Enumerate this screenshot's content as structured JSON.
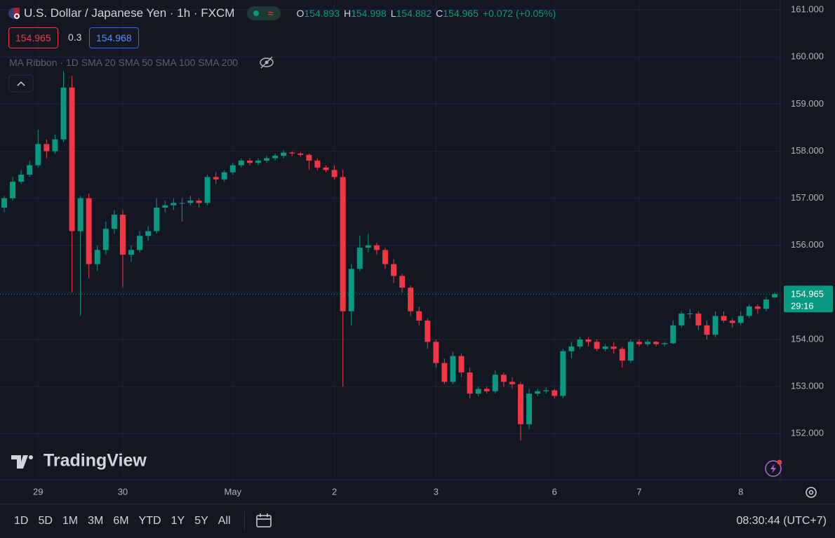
{
  "header": {
    "symbol": "U.S. Dollar / Japanese Yen · 1h · FXCM",
    "ohlc": [
      {
        "key": "O",
        "value": "154.893"
      },
      {
        "key": "H",
        "value": "154.998"
      },
      {
        "key": "L",
        "value": "154.882"
      },
      {
        "key": "C",
        "value": "154.965"
      }
    ],
    "change": "+0.072 (+0.05%)",
    "sell": "154.965",
    "spread": "0.3",
    "buy": "154.968",
    "indicator": "MA Ribbon · 1D SMA 20 SMA 50 SMA 100 SMA 200"
  },
  "chart_data": {
    "type": "candlestick",
    "categories": [
      null,
      null,
      null,
      null,
      "29",
      null,
      null,
      null,
      null,
      null,
      null,
      null,
      null,
      null,
      "30",
      null,
      null,
      null,
      null,
      null,
      null,
      null,
      null,
      null,
      null,
      null,
      null,
      "May",
      null,
      null,
      null,
      null,
      null,
      null,
      null,
      null,
      null,
      null,
      null,
      "2",
      null,
      null,
      null,
      null,
      null,
      null,
      null,
      null,
      null,
      null,
      null,
      "3",
      null,
      null,
      null,
      null,
      null,
      null,
      null,
      null,
      null,
      null,
      null,
      null,
      null,
      "6",
      null,
      null,
      null,
      null,
      null,
      null,
      null,
      null,
      null,
      "7",
      null,
      null,
      null,
      null,
      null,
      null,
      null,
      null,
      null,
      null,
      null,
      "8",
      null,
      null,
      null,
      null
    ],
    "ohlc": [
      [
        156.8,
        157.05,
        156.7,
        157.0
      ],
      [
        157.0,
        157.45,
        156.95,
        157.35
      ],
      [
        157.35,
        157.6,
        157.3,
        157.5
      ],
      [
        157.5,
        157.8,
        157.45,
        157.7
      ],
      [
        157.7,
        158.45,
        157.65,
        158.15
      ],
      [
        158.15,
        158.25,
        157.85,
        158.0
      ],
      [
        158.0,
        158.35,
        157.95,
        158.25
      ],
      [
        158.25,
        159.7,
        158.2,
        159.35
      ],
      [
        159.35,
        159.6,
        155.0,
        156.3
      ],
      [
        156.3,
        157.05,
        154.5,
        157.0
      ],
      [
        157.0,
        157.1,
        155.3,
        155.6
      ],
      [
        155.6,
        156.0,
        155.45,
        155.9
      ],
      [
        155.9,
        156.5,
        155.8,
        156.35
      ],
      [
        156.35,
        156.75,
        156.25,
        156.65
      ],
      [
        156.65,
        156.75,
        155.1,
        155.8
      ],
      [
        155.8,
        156.0,
        155.65,
        155.9
      ],
      [
        155.9,
        156.3,
        155.85,
        156.2
      ],
      [
        156.2,
        156.4,
        156.1,
        156.3
      ],
      [
        156.3,
        157.0,
        156.25,
        156.8
      ],
      [
        156.8,
        156.95,
        156.7,
        156.85
      ],
      [
        156.85,
        157.0,
        156.75,
        156.9
      ],
      [
        156.9,
        157.0,
        156.5,
        156.9
      ],
      [
        156.9,
        157.05,
        156.85,
        156.95
      ],
      [
        156.95,
        157.0,
        156.8,
        156.9
      ],
      [
        156.9,
        157.5,
        156.85,
        157.45
      ],
      [
        157.45,
        157.55,
        157.3,
        157.4
      ],
      [
        157.4,
        157.6,
        157.35,
        157.55
      ],
      [
        157.55,
        157.75,
        157.5,
        157.7
      ],
      [
        157.7,
        157.85,
        157.65,
        157.8
      ],
      [
        157.8,
        157.85,
        157.7,
        157.75
      ],
      [
        157.75,
        157.85,
        157.7,
        157.8
      ],
      [
        157.8,
        157.9,
        157.75,
        157.85
      ],
      [
        157.85,
        157.95,
        157.8,
        157.9
      ],
      [
        157.9,
        158.02,
        157.85,
        157.97
      ],
      [
        157.97,
        158.0,
        157.9,
        157.95
      ],
      [
        157.95,
        157.98,
        157.88,
        157.92
      ],
      [
        157.92,
        157.95,
        157.6,
        157.8
      ],
      [
        157.8,
        157.85,
        157.6,
        157.65
      ],
      [
        157.65,
        157.7,
        157.55,
        157.6
      ],
      [
        157.6,
        157.7,
        157.4,
        157.45
      ],
      [
        157.45,
        157.6,
        153.0,
        154.6
      ],
      [
        154.6,
        155.6,
        154.3,
        155.5
      ],
      [
        155.5,
        156.2,
        155.45,
        155.95
      ],
      [
        155.95,
        156.25,
        155.85,
        156.0
      ],
      [
        156.0,
        156.05,
        155.8,
        155.9
      ],
      [
        155.9,
        155.95,
        155.5,
        155.6
      ],
      [
        155.6,
        155.7,
        155.2,
        155.35
      ],
      [
        155.35,
        155.4,
        155.0,
        155.1
      ],
      [
        155.1,
        155.15,
        154.5,
        154.6
      ],
      [
        154.6,
        154.7,
        154.3,
        154.4
      ],
      [
        154.4,
        154.45,
        153.8,
        153.95
      ],
      [
        153.95,
        154.0,
        153.4,
        153.5
      ],
      [
        153.5,
        153.6,
        153.05,
        153.1
      ],
      [
        153.1,
        153.75,
        153.05,
        153.65
      ],
      [
        153.65,
        153.7,
        153.2,
        153.3
      ],
      [
        153.3,
        153.4,
        152.75,
        152.85
      ],
      [
        152.85,
        153.0,
        152.8,
        152.95
      ],
      [
        152.95,
        153.0,
        152.85,
        152.9
      ],
      [
        152.9,
        153.35,
        152.85,
        153.25
      ],
      [
        153.25,
        153.3,
        153.0,
        153.1
      ],
      [
        153.1,
        153.2,
        152.95,
        153.05
      ],
      [
        153.05,
        153.1,
        151.85,
        152.2
      ],
      [
        152.2,
        152.95,
        152.1,
        152.85
      ],
      [
        152.85,
        152.95,
        152.8,
        152.9
      ],
      [
        152.9,
        152.98,
        152.85,
        152.92
      ],
      [
        152.92,
        152.95,
        152.75,
        152.8
      ],
      [
        152.8,
        153.8,
        152.75,
        153.75
      ],
      [
        153.75,
        153.95,
        153.6,
        153.85
      ],
      [
        153.85,
        154.05,
        153.8,
        154.0
      ],
      [
        154.0,
        154.05,
        153.85,
        153.95
      ],
      [
        153.95,
        154.0,
        153.75,
        153.8
      ],
      [
        153.8,
        153.9,
        153.75,
        153.85
      ],
      [
        153.85,
        153.95,
        153.7,
        153.8
      ],
      [
        153.8,
        153.85,
        153.4,
        153.55
      ],
      [
        153.55,
        154.0,
        153.5,
        153.95
      ],
      [
        153.95,
        154.0,
        153.85,
        153.9
      ],
      [
        153.9,
        154.0,
        153.85,
        153.95
      ],
      [
        153.95,
        153.97,
        153.85,
        153.9
      ],
      [
        153.9,
        153.95,
        153.85,
        153.92
      ],
      [
        153.92,
        154.4,
        153.9,
        154.3
      ],
      [
        154.3,
        154.6,
        154.25,
        154.55
      ],
      [
        154.55,
        154.65,
        154.45,
        154.55
      ],
      [
        154.55,
        154.6,
        154.2,
        154.3
      ],
      [
        154.3,
        154.4,
        154.0,
        154.1
      ],
      [
        154.1,
        154.6,
        154.05,
        154.5
      ],
      [
        154.5,
        154.6,
        154.35,
        154.4
      ],
      [
        154.4,
        154.45,
        154.25,
        154.35
      ],
      [
        154.35,
        154.6,
        154.3,
        154.5
      ],
      [
        154.5,
        154.75,
        154.45,
        154.7
      ],
      [
        154.7,
        154.75,
        154.55,
        154.65
      ],
      [
        154.65,
        154.9,
        154.6,
        154.85
      ],
      [
        154.893,
        154.998,
        154.882,
        154.965
      ]
    ],
    "up_color": "#089981",
    "down_color": "#f23645",
    "ylim": [
      151.02,
      161.21
    ],
    "yticks": [
      {
        "value": 152,
        "label": "152.000"
      },
      {
        "value": 153,
        "label": "153.000"
      },
      {
        "value": 154,
        "label": "154.000"
      },
      {
        "value": 155,
        "label": "155.000"
      },
      {
        "value": 156,
        "label": "156.000"
      },
      {
        "value": 157,
        "label": "157.000"
      },
      {
        "value": 158,
        "label": "158.000"
      },
      {
        "value": 159,
        "label": "159.000"
      },
      {
        "value": 160,
        "label": "160.000"
      },
      {
        "value": 161,
        "label": "161.000"
      }
    ],
    "grid": true,
    "countdown": "29:16"
  },
  "brand": "TradingView",
  "toolbar": {
    "ranges": [
      "1D",
      "5D",
      "1M",
      "3M",
      "6M",
      "YTD",
      "1Y",
      "5Y",
      "All"
    ],
    "clock": "08:30:44 (UTC+7)"
  }
}
